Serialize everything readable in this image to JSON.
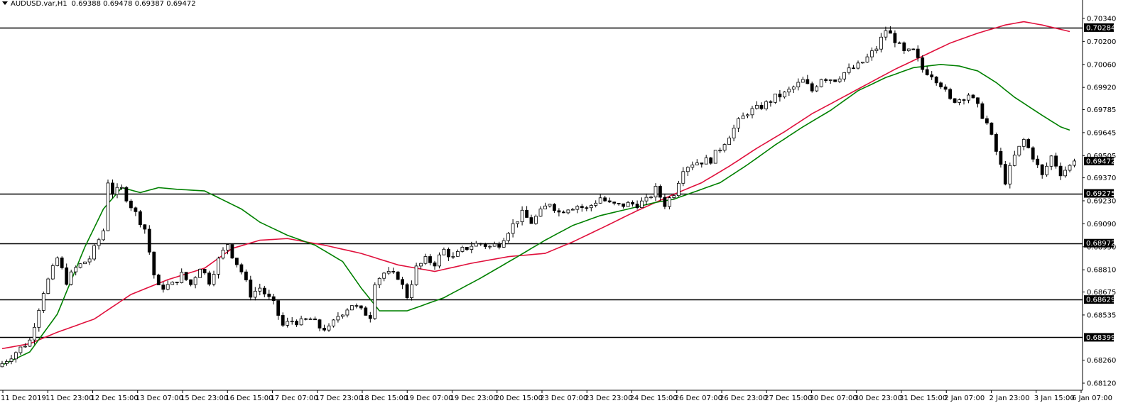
{
  "header": {
    "symbol": "AUDUSD.var,H1",
    "ohlc": "0.69388 0.69478 0.69387 0.69472"
  },
  "colors": {
    "background": "#ffffff",
    "candle": "#000000",
    "level_line": "#000000",
    "ma_fast": "#008000",
    "ma_slow": "#e0103c",
    "marker_bg": "#000000",
    "marker_text": "#ffffff"
  },
  "chart_data": {
    "type": "candlestick",
    "ylim": [
      0.6812,
      0.7037
    ],
    "price_ticks": [
      "0.70340",
      "0.70200",
      "0.70060",
      "0.69920",
      "0.69785",
      "0.69645",
      "0.69505",
      "0.69370",
      "0.69230",
      "0.69090",
      "0.68950",
      "0.68810",
      "0.68675",
      "0.68535",
      "0.68260",
      "0.68120"
    ],
    "price_markers": [
      "0.70284",
      "0.69472",
      "0.69275",
      "0.68972",
      "0.68629",
      "0.68399"
    ],
    "horizontal_levels": [
      0.70284,
      0.69275,
      0.68972,
      0.68629,
      0.68399
    ],
    "current_price": 0.69472,
    "time_labels": [
      "11 Dec 2019",
      "11 Dec 23:00",
      "12 Dec 15:00",
      "13 Dec 07:00",
      "15 Dec 23:00",
      "16 Dec 15:00",
      "17 Dec 07:00",
      "17 Dec 23:00",
      "18 Dec 15:00",
      "19 Dec 07:00",
      "19 Dec 23:00",
      "20 Dec 15:00",
      "23 Dec 07:00",
      "23 Dec 23:00",
      "24 Dec 15:00",
      "26 Dec 07:00",
      "26 Dec 23:00",
      "27 Dec 15:00",
      "30 Dec 07:00",
      "30 Dec 23:00",
      "31 Dec 15:00",
      "2 Jan 07:00",
      "2 Jan 23:00",
      "3 Jan 15:00",
      "6 Jan 07:00"
    ],
    "close_path": [
      [
        0,
        0.6824
      ],
      [
        6,
        0.6838
      ],
      [
        9,
        0.6868
      ],
      [
        12,
        0.6888
      ],
      [
        14,
        0.6874
      ],
      [
        16,
        0.6882
      ],
      [
        19,
        0.6888
      ],
      [
        22,
        0.6905
      ],
      [
        23,
        0.6935
      ],
      [
        24,
        0.6928
      ],
      [
        26,
        0.693
      ],
      [
        28,
        0.692
      ],
      [
        31,
        0.6906
      ],
      [
        33,
        0.6878
      ],
      [
        34,
        0.687
      ],
      [
        37,
        0.6872
      ],
      [
        39,
        0.6878
      ],
      [
        41,
        0.6872
      ],
      [
        43,
        0.6883
      ],
      [
        45,
        0.6874
      ],
      [
        47,
        0.6887
      ],
      [
        49,
        0.6897
      ],
      [
        50,
        0.689
      ],
      [
        52,
        0.688
      ],
      [
        54,
        0.6866
      ],
      [
        56,
        0.687
      ],
      [
        59,
        0.686
      ],
      [
        61,
        0.6847
      ],
      [
        63,
        0.685
      ],
      [
        65,
        0.6849
      ],
      [
        67,
        0.6851
      ],
      [
        69,
        0.6846
      ],
      [
        71,
        0.6845
      ],
      [
        73,
        0.6853
      ],
      [
        76,
        0.686
      ],
      [
        78,
        0.6856
      ],
      [
        80,
        0.6853
      ],
      [
        81,
        0.6874
      ],
      [
        83,
        0.6879
      ],
      [
        86,
        0.6877
      ],
      [
        88,
        0.6865
      ],
      [
        90,
        0.6882
      ],
      [
        92,
        0.6887
      ],
      [
        94,
        0.6885
      ],
      [
        96,
        0.6893
      ],
      [
        98,
        0.6888
      ],
      [
        100,
        0.6893
      ],
      [
        102,
        0.6896
      ],
      [
        104,
        0.6897
      ],
      [
        106,
        0.6895
      ],
      [
        108,
        0.6897
      ],
      [
        110,
        0.6905
      ],
      [
        113,
        0.6915
      ],
      [
        115,
        0.691
      ],
      [
        117,
        0.6916
      ],
      [
        119,
        0.6922
      ],
      [
        121,
        0.6916
      ],
      [
        123,
        0.6919
      ],
      [
        125,
        0.692
      ],
      [
        127,
        0.6918
      ],
      [
        130,
        0.6925
      ],
      [
        132,
        0.6921
      ],
      [
        134,
        0.692
      ],
      [
        136,
        0.6921
      ],
      [
        138,
        0.6921
      ],
      [
        140,
        0.6923
      ],
      [
        142,
        0.693
      ],
      [
        144,
        0.6921
      ],
      [
        146,
        0.6928
      ],
      [
        148,
        0.6943
      ],
      [
        150,
        0.6946
      ],
      [
        152,
        0.6947
      ],
      [
        154,
        0.6948
      ],
      [
        156,
        0.6955
      ],
      [
        158,
        0.6963
      ],
      [
        160,
        0.6971
      ],
      [
        162,
        0.6977
      ],
      [
        164,
        0.6979
      ],
      [
        166,
        0.6982
      ],
      [
        168,
        0.6986
      ],
      [
        170,
        0.6988
      ],
      [
        172,
        0.6992
      ],
      [
        174,
        0.6996
      ],
      [
        176,
        0.699
      ],
      [
        178,
        0.6998
      ],
      [
        181,
        0.6997
      ],
      [
        183,
        0.7001
      ],
      [
        186,
        0.7005
      ],
      [
        188,
        0.701
      ],
      [
        190,
        0.7016
      ],
      [
        192,
        0.7027
      ],
      [
        194,
        0.7021
      ],
      [
        196,
        0.7013
      ],
      [
        198,
        0.7014
      ],
      [
        200,
        0.7003
      ],
      [
        202,
        0.7
      ],
      [
        204,
        0.6994
      ],
      [
        206,
        0.6984
      ],
      [
        208,
        0.6985
      ],
      [
        210,
        0.6988
      ],
      [
        212,
        0.698
      ],
      [
        214,
        0.697
      ],
      [
        216,
        0.6953
      ],
      [
        218,
        0.6935
      ],
      [
        220,
        0.695
      ],
      [
        222,
        0.696
      ],
      [
        224,
        0.695
      ],
      [
        226,
        0.6938
      ],
      [
        228,
        0.695
      ],
      [
        230,
        0.694
      ],
      [
        232,
        0.6944
      ],
      [
        233,
        0.6947
      ]
    ],
    "ma_fast": [
      [
        0,
        0.6823
      ],
      [
        6,
        0.6831
      ],
      [
        12,
        0.6854
      ],
      [
        18,
        0.6895
      ],
      [
        22,
        0.6918
      ],
      [
        26,
        0.6931
      ],
      [
        30,
        0.6928
      ],
      [
        34,
        0.6931
      ],
      [
        38,
        0.693
      ],
      [
        44,
        0.6929
      ],
      [
        52,
        0.6918
      ],
      [
        56,
        0.691
      ],
      [
        62,
        0.6902
      ],
      [
        68,
        0.6896
      ],
      [
        74,
        0.6886
      ],
      [
        78,
        0.687
      ],
      [
        82,
        0.6856
      ],
      [
        88,
        0.6856
      ],
      [
        96,
        0.6864
      ],
      [
        104,
        0.6876
      ],
      [
        112,
        0.6889
      ],
      [
        118,
        0.6899
      ],
      [
        124,
        0.6908
      ],
      [
        130,
        0.6914
      ],
      [
        136,
        0.6918
      ],
      [
        142,
        0.6922
      ],
      [
        146,
        0.6924
      ],
      [
        150,
        0.6928
      ],
      [
        156,
        0.6934
      ],
      [
        162,
        0.6945
      ],
      [
        168,
        0.6957
      ],
      [
        174,
        0.6968
      ],
      [
        180,
        0.6978
      ],
      [
        186,
        0.699
      ],
      [
        192,
        0.6998
      ],
      [
        198,
        0.7004
      ],
      [
        204,
        0.7006
      ],
      [
        208,
        0.7005
      ],
      [
        212,
        0.7002
      ],
      [
        216,
        0.6995
      ],
      [
        220,
        0.6986
      ],
      [
        226,
        0.6975
      ],
      [
        230,
        0.6968
      ],
      [
        232,
        0.6966
      ]
    ],
    "ma_slow": [
      [
        0,
        0.6833
      ],
      [
        6,
        0.6836
      ],
      [
        12,
        0.6843
      ],
      [
        20,
        0.6851
      ],
      [
        28,
        0.6866
      ],
      [
        36,
        0.6875
      ],
      [
        44,
        0.6882
      ],
      [
        50,
        0.6894
      ],
      [
        56,
        0.6899
      ],
      [
        62,
        0.69
      ],
      [
        70,
        0.6896
      ],
      [
        78,
        0.6891
      ],
      [
        86,
        0.6884
      ],
      [
        94,
        0.688
      ],
      [
        102,
        0.6885
      ],
      [
        110,
        0.6889
      ],
      [
        118,
        0.6891
      ],
      [
        124,
        0.6898
      ],
      [
        130,
        0.6906
      ],
      [
        138,
        0.6917
      ],
      [
        146,
        0.6927
      ],
      [
        152,
        0.6934
      ],
      [
        158,
        0.6944
      ],
      [
        164,
        0.6955
      ],
      [
        170,
        0.6965
      ],
      [
        176,
        0.6976
      ],
      [
        182,
        0.6985
      ],
      [
        188,
        0.6994
      ],
      [
        194,
        0.7003
      ],
      [
        200,
        0.7011
      ],
      [
        206,
        0.7019
      ],
      [
        212,
        0.7025
      ],
      [
        218,
        0.703
      ],
      [
        222,
        0.7032
      ],
      [
        226,
        0.703
      ],
      [
        232,
        0.7026
      ]
    ]
  }
}
